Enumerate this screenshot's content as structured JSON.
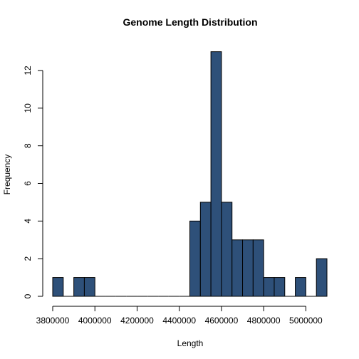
{
  "chart_data": {
    "type": "bar",
    "title": "Genome Length Distribution",
    "xlabel": "Length",
    "ylabel": "Frequency",
    "bar_color": "#2e5079",
    "bin_width": 50000,
    "xlim": [
      3800000,
      5100000
    ],
    "ylim": [
      0,
      13
    ],
    "x_ticks": [
      3800000,
      4000000,
      4200000,
      4400000,
      4600000,
      4800000,
      5000000
    ],
    "y_ticks": [
      0,
      2,
      4,
      6,
      8,
      10,
      12
    ],
    "bins": [
      {
        "start": 3800000,
        "end": 3850000,
        "count": 1
      },
      {
        "start": 3850000,
        "end": 3900000,
        "count": 0
      },
      {
        "start": 3900000,
        "end": 3950000,
        "count": 1
      },
      {
        "start": 3950000,
        "end": 4000000,
        "count": 1
      },
      {
        "start": 4000000,
        "end": 4050000,
        "count": 0
      },
      {
        "start": 4050000,
        "end": 4100000,
        "count": 0
      },
      {
        "start": 4100000,
        "end": 4150000,
        "count": 0
      },
      {
        "start": 4150000,
        "end": 4200000,
        "count": 0
      },
      {
        "start": 4200000,
        "end": 4250000,
        "count": 0
      },
      {
        "start": 4250000,
        "end": 4300000,
        "count": 0
      },
      {
        "start": 4300000,
        "end": 4350000,
        "count": 0
      },
      {
        "start": 4350000,
        "end": 4400000,
        "count": 0
      },
      {
        "start": 4400000,
        "end": 4450000,
        "count": 0
      },
      {
        "start": 4450000,
        "end": 4500000,
        "count": 4
      },
      {
        "start": 4500000,
        "end": 4550000,
        "count": 5
      },
      {
        "start": 4550000,
        "end": 4600000,
        "count": 13
      },
      {
        "start": 4600000,
        "end": 4650000,
        "count": 5
      },
      {
        "start": 4650000,
        "end": 4700000,
        "count": 3
      },
      {
        "start": 4700000,
        "end": 4750000,
        "count": 3
      },
      {
        "start": 4750000,
        "end": 4800000,
        "count": 3
      },
      {
        "start": 4800000,
        "end": 4850000,
        "count": 1
      },
      {
        "start": 4850000,
        "end": 4900000,
        "count": 1
      },
      {
        "start": 4900000,
        "end": 4950000,
        "count": 0
      },
      {
        "start": 4950000,
        "end": 5000000,
        "count": 1
      },
      {
        "start": 5000000,
        "end": 5050000,
        "count": 0
      },
      {
        "start": 5050000,
        "end": 5100000,
        "count": 2
      }
    ]
  }
}
